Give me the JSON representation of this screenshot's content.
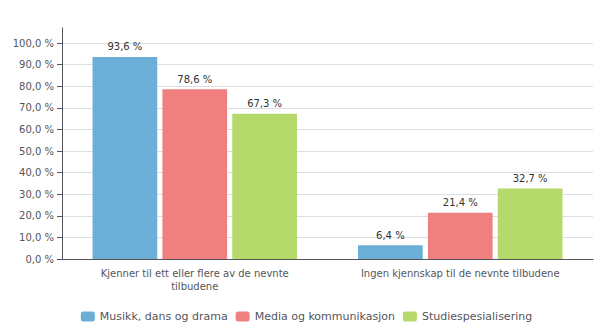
{
  "chart_data": {
    "type": "bar",
    "categories": [
      "Kjenner til ett eller flere av de nevnte\ntilbudene",
      "Ingen kjennskap til de nevnte tilbudene"
    ],
    "series": [
      {
        "name": "Musikk, dans og drama",
        "color": "#6baed6",
        "values": [
          93.6,
          6.4
        ],
        "value_labels": [
          "93,6 %",
          "6,4 %"
        ]
      },
      {
        "name": "Media og kommunikasjon",
        "color": "#f08080",
        "values": [
          78.6,
          21.4
        ],
        "value_labels": [
          "78,6 %",
          "21,4 %"
        ]
      },
      {
        "name": "Studiespesialisering",
        "color": "#b5d96b",
        "values": [
          67.3,
          32.7
        ],
        "value_labels": [
          "67,3 %",
          "32,7 %"
        ]
      }
    ],
    "ylim": [
      0,
      107
    ],
    "yticks": [
      {
        "value": 0,
        "label": "0,0 %"
      },
      {
        "value": 10,
        "label": "10,0 %"
      },
      {
        "value": 20,
        "label": "20,0 %"
      },
      {
        "value": 30,
        "label": "30,0 %"
      },
      {
        "value": 40,
        "label": "40,0 %"
      },
      {
        "value": 50,
        "label": "50,0 %"
      },
      {
        "value": 60,
        "label": "60,0 %"
      },
      {
        "value": 70,
        "label": "70,0 %"
      },
      {
        "value": 80,
        "label": "80,0 %"
      },
      {
        "value": 90,
        "label": "90,0 %"
      },
      {
        "value": 100,
        "label": "100,0 %"
      }
    ],
    "grid": true,
    "legend": "bottom",
    "data_labels": true
  }
}
